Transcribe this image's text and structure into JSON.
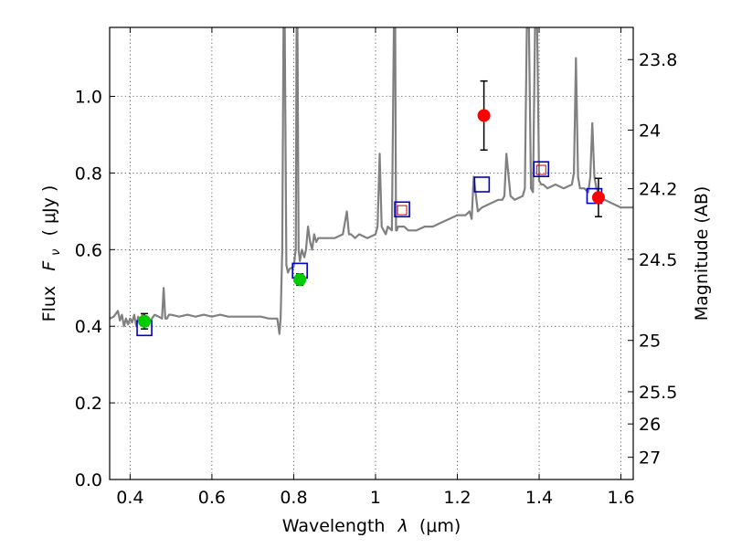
{
  "chart_data": {
    "type": "line",
    "xlabel_text": "Wavelength",
    "xlabel_symbol": "λ",
    "xlabel_unit": "(μm)",
    "ylabel_text": "Flux",
    "ylabel_symbol": "F",
    "ylabel_subscript": "ν",
    "ylabel_unit": "( μJy )",
    "y2label": "Magnitude (AB)",
    "xlim": [
      0.35,
      1.63
    ],
    "ylim": [
      0.0,
      1.18
    ],
    "grid": true,
    "x_ticks": [
      0.4,
      0.6,
      0.8,
      1.0,
      1.2,
      1.4,
      1.6
    ],
    "x_tick_labels": [
      "0.4",
      "0.6",
      "0.8",
      "1",
      "1.2",
      "1.4",
      "1.6"
    ],
    "y_ticks": [
      0.0,
      0.2,
      0.4,
      0.6,
      0.8,
      1.0
    ],
    "y_tick_labels": [
      "0.0",
      "0.2",
      "0.4",
      "0.6",
      "0.8",
      "1.0"
    ],
    "y2_ticks": [
      {
        "flux": 1.096,
        "label": "23.8"
      },
      {
        "flux": 0.912,
        "label": "24"
      },
      {
        "flux": 0.759,
        "label": "24.2"
      },
      {
        "flux": 0.575,
        "label": "24.5"
      },
      {
        "flux": 0.363,
        "label": "25"
      },
      {
        "flux": 0.229,
        "label": "25.5"
      },
      {
        "flux": 0.145,
        "label": "26"
      },
      {
        "flux": 0.058,
        "label": "27"
      }
    ],
    "spectrum": {
      "color": "#808080",
      "x": [
        0.35,
        0.36,
        0.37,
        0.375,
        0.38,
        0.385,
        0.39,
        0.395,
        0.4,
        0.405,
        0.41,
        0.415,
        0.42,
        0.425,
        0.43,
        0.44,
        0.45,
        0.46,
        0.47,
        0.478,
        0.482,
        0.486,
        0.49,
        0.495,
        0.5,
        0.52,
        0.54,
        0.56,
        0.58,
        0.6,
        0.62,
        0.64,
        0.66,
        0.68,
        0.7,
        0.72,
        0.74,
        0.76,
        0.765,
        0.768,
        0.772,
        0.775,
        0.778,
        0.782,
        0.786,
        0.79,
        0.8,
        0.805,
        0.807,
        0.809,
        0.812,
        0.815,
        0.82,
        0.826,
        0.83,
        0.835,
        0.84,
        0.845,
        0.85,
        0.855,
        0.86,
        0.87,
        0.88,
        0.9,
        0.92,
        0.93,
        0.935,
        0.94,
        0.95,
        0.96,
        0.98,
        1.0,
        1.005,
        1.01,
        1.015,
        1.02,
        1.025,
        1.03,
        1.04,
        1.045,
        1.048,
        1.05,
        1.052,
        1.055,
        1.06,
        1.07,
        1.08,
        1.1,
        1.12,
        1.14,
        1.16,
        1.18,
        1.2,
        1.22,
        1.23,
        1.235,
        1.24,
        1.25,
        1.26,
        1.28,
        1.3,
        1.31,
        1.315,
        1.32,
        1.33,
        1.34,
        1.36,
        1.365,
        1.37,
        1.375,
        1.38,
        1.385,
        1.39,
        1.395,
        1.4,
        1.405,
        1.41,
        1.42,
        1.44,
        1.46,
        1.48,
        1.485,
        1.49,
        1.495,
        1.5,
        1.51,
        1.52,
        1.525,
        1.53,
        1.535,
        1.54,
        1.55,
        1.56,
        1.58,
        1.6,
        1.63
      ],
      "y": [
        0.42,
        0.425,
        0.44,
        0.415,
        0.43,
        0.4,
        0.42,
        0.405,
        0.42,
        0.41,
        0.43,
        0.4,
        0.425,
        0.415,
        0.43,
        0.42,
        0.415,
        0.43,
        0.425,
        0.42,
        0.5,
        0.42,
        0.42,
        0.43,
        0.43,
        0.425,
        0.43,
        0.425,
        0.43,
        0.425,
        0.43,
        0.425,
        0.425,
        0.425,
        0.425,
        0.425,
        0.42,
        0.42,
        0.38,
        0.42,
        0.6,
        1.2,
        1.2,
        0.56,
        0.54,
        0.55,
        0.555,
        0.6,
        1.2,
        1.2,
        0.6,
        0.57,
        0.6,
        0.58,
        0.6,
        0.66,
        0.62,
        0.6,
        0.64,
        0.62,
        0.63,
        0.63,
        0.63,
        0.63,
        0.64,
        0.7,
        0.64,
        0.64,
        0.63,
        0.64,
        0.63,
        0.64,
        0.66,
        0.85,
        0.66,
        0.65,
        0.64,
        0.66,
        0.65,
        1.2,
        1.2,
        0.65,
        0.65,
        0.66,
        0.66,
        0.66,
        0.65,
        0.65,
        0.66,
        0.66,
        0.67,
        0.68,
        0.69,
        0.69,
        0.7,
        0.68,
        0.79,
        0.7,
        0.71,
        0.72,
        0.73,
        0.73,
        0.74,
        0.85,
        0.74,
        0.73,
        0.74,
        0.76,
        1.2,
        1.2,
        0.76,
        0.75,
        1.2,
        1.2,
        0.78,
        0.77,
        0.77,
        0.76,
        0.77,
        0.76,
        0.77,
        0.8,
        1.1,
        0.79,
        0.76,
        0.76,
        0.75,
        0.79,
        0.93,
        0.79,
        0.76,
        0.74,
        0.73,
        0.72,
        0.71,
        0.71
      ]
    },
    "model_boxes": [
      {
        "x": 0.435,
        "y": 0.395,
        "color": "#0000cc"
      },
      {
        "x": 0.815,
        "y": 0.545,
        "color": "#0000cc"
      },
      {
        "x": 1.065,
        "y": 0.705,
        "color": "#0000cc"
      },
      {
        "x": 1.26,
        "y": 0.77,
        "color": "#0000cc"
      },
      {
        "x": 1.405,
        "y": 0.81,
        "color": "#0000cc"
      },
      {
        "x": 1.535,
        "y": 0.74,
        "color": "#0000cc"
      }
    ],
    "inner_boxes": [
      {
        "x": 1.065,
        "y": 0.703,
        "color": "#cc0000"
      },
      {
        "x": 1.405,
        "y": 0.808,
        "color": "#cc0000"
      }
    ],
    "observed_points": [
      {
        "x": 0.435,
        "y": 0.413,
        "err": 0.02,
        "color": "#00cc00"
      },
      {
        "x": 0.815,
        "y": 0.522,
        "err": 0.015,
        "color": "#00cc00"
      },
      {
        "x": 1.265,
        "y": 0.95,
        "err": 0.09,
        "color": "#ff0000"
      },
      {
        "x": 1.545,
        "y": 0.736,
        "err": 0.05,
        "color": "#ff0000"
      }
    ]
  }
}
